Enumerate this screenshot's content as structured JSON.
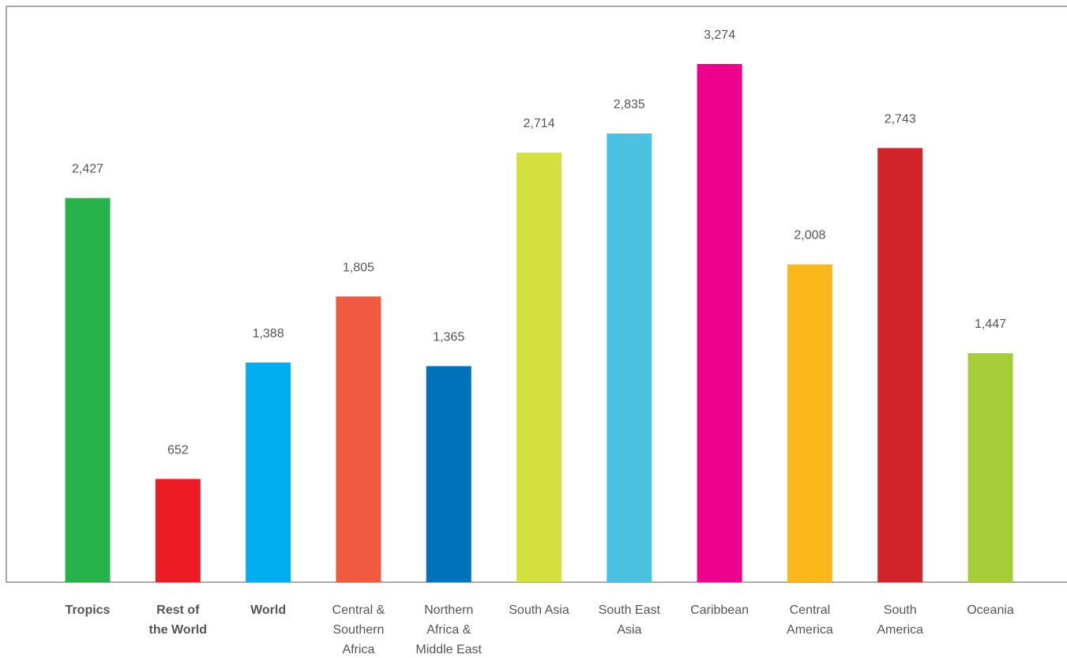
{
  "chart_data": {
    "type": "bar",
    "title": "",
    "xlabel": "",
    "ylabel": "",
    "ylim": [
      0,
      3600
    ],
    "grid": false,
    "legend": "none",
    "categories": [
      "Tropics",
      "Rest of the World",
      "World",
      "Central & Southern Africa",
      "Northern Africa & Middle East",
      "South Asia",
      "South East Asia",
      "Caribbean",
      "Central America",
      "South America",
      "Oceania"
    ],
    "category_lines": [
      [
        "Tropics"
      ],
      [
        "Rest of",
        "the World"
      ],
      [
        "World"
      ],
      [
        "Central &",
        "Southern",
        "Africa"
      ],
      [
        "Northern",
        "Africa &",
        "Middle East"
      ],
      [
        "South Asia"
      ],
      [
        "South East",
        "Asia"
      ],
      [
        "Caribbean"
      ],
      [
        "Central",
        "America"
      ],
      [
        "South",
        "America"
      ],
      [
        "Oceania"
      ]
    ],
    "bold_categories": [
      true,
      true,
      true,
      false,
      false,
      false,
      false,
      false,
      false,
      false,
      false
    ],
    "values": [
      2427,
      652,
      1388,
      1805,
      1365,
      2714,
      2835,
      3274,
      2008,
      2743,
      1447
    ],
    "value_labels": [
      "2,427",
      "652",
      "1,388",
      "1,805",
      "1,365",
      "2,714",
      "2,835",
      "3,274",
      "2,008",
      "2,743",
      "1,447"
    ],
    "colors": [
      "#27b24b",
      "#ed1c24",
      "#00aeef",
      "#f05a40",
      "#0072bc",
      "#d4e03e",
      "#4bc3e0",
      "#ec008c",
      "#fbb61a",
      "#d1232a",
      "#a6ce39"
    ]
  }
}
